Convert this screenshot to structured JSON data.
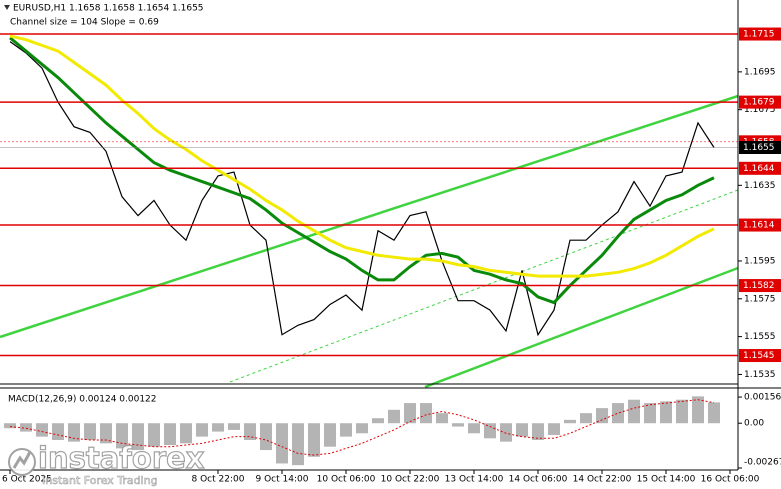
{
  "chart_data": [
    {
      "type": "line",
      "title": "EURUSD,H1  1.1658 1.1658 1.1654 1.1655",
      "subtitle": "Channel size = 104 Slope = 0.69",
      "categories": [
        "6 Oct 2025",
        null,
        null,
        null,
        null,
        null,
        null,
        null,
        null,
        null,
        null,
        null,
        null,
        "8 Oct 22:00",
        null,
        null,
        null,
        "9 Oct 14:00",
        null,
        null,
        null,
        "10 Oct 06:00",
        null,
        null,
        null,
        "10 Oct 22:00",
        null,
        null,
        null,
        "13 Oct 14:00",
        null,
        null,
        null,
        "14 Oct 06:00",
        null,
        null,
        null,
        "14 Oct 22:00",
        null,
        null,
        null,
        "15 Oct 14:00",
        null,
        null,
        null,
        "16 Oct 06:00"
      ],
      "series": [
        {
          "color": "#000000",
          "values": [
            1.1711,
            1.1705,
            1.1697,
            1.1679,
            1.1666,
            1.1663,
            1.1653,
            1.1629,
            1.1619,
            1.1627,
            1.1614,
            1.1606,
            1.1627,
            1.164,
            1.1642,
            1.1614,
            1.1606,
            1.1556,
            1.1561,
            1.1564,
            1.1572,
            1.1577,
            1.1569,
            1.1611,
            1.1606,
            1.1619,
            1.1621,
            1.1595,
            1.1574,
            1.1574,
            1.1569,
            1.1558,
            1.159,
            1.1556,
            1.1569,
            1.1606,
            1.1606,
            1.1614,
            1.1621,
            1.1637,
            1.1624,
            1.164,
            1.1642,
            1.1668,
            1.1655,
            null
          ]
        },
        {
          "color": "#0a8a0a",
          "values": [
            1.1713,
            1.1706,
            1.1699,
            1.1692,
            1.1684,
            1.1676,
            1.1668,
            1.1661,
            1.1654,
            1.1647,
            1.1643,
            1.164,
            1.1637,
            1.1634,
            1.1631,
            1.1628,
            1.1622,
            1.1615,
            1.161,
            1.1605,
            1.16,
            1.1596,
            1.159,
            1.1585,
            1.1585,
            1.1592,
            1.1598,
            1.1599,
            1.1597,
            1.159,
            1.1588,
            1.1585,
            1.1583,
            1.1576,
            1.1573,
            1.1582,
            1.159,
            1.1598,
            1.1608,
            1.1617,
            1.1622,
            1.1627,
            1.163,
            1.1635,
            1.1639,
            null
          ]
        },
        {
          "color": "#f2ea00",
          "values": [
            1.1714,
            1.1712,
            1.1709,
            1.1706,
            1.17,
            1.1694,
            1.1688,
            1.168,
            1.1673,
            1.1665,
            1.1659,
            1.1654,
            1.1648,
            1.1643,
            1.1638,
            1.1633,
            1.1627,
            1.1622,
            1.1616,
            1.1611,
            1.1606,
            1.1602,
            1.16,
            1.1598,
            1.1597,
            1.1596,
            1.1596,
            1.1595,
            1.1593,
            1.1592,
            1.159,
            1.1589,
            1.1588,
            1.1587,
            1.1587,
            1.1587,
            1.1587,
            1.1588,
            1.1589,
            1.1591,
            1.1594,
            1.1598,
            1.1603,
            1.1608,
            1.1612,
            null
          ]
        }
      ],
      "ylim": [
        1.1531,
        1.1733
      ],
      "yticks": [
        1.1535,
        1.1555,
        1.1575,
        1.1595,
        1.1635,
        1.1675,
        1.1695
      ],
      "levels": [
        1.1715,
        1.1679,
        1.1644,
        1.1614,
        1.1582,
        1.1545
      ],
      "level_color": "#e00000",
      "bid_price": 1.1658,
      "last_price": 1.1655,
      "watermark": {
        "brand": "instaforex",
        "tagline": "Instant Forex Trading"
      }
    },
    {
      "type": "bar",
      "title": "MACD(12,26,9) 0.00124 0.00122",
      "color": "#b4b4b4",
      "values": [
        -0.0003,
        -0.0005,
        -0.0008,
        -0.001,
        -0.0011,
        -0.001,
        -0.0012,
        -0.0015,
        -0.0016,
        -0.0014,
        -0.0013,
        -0.0012,
        -0.0008,
        -0.0005,
        -0.0004,
        -0.001,
        -0.0016,
        -0.0024,
        -0.0025,
        -0.002,
        -0.0014,
        -0.0008,
        -0.0006,
        0.0003,
        0.0008,
        0.0012,
        0.0012,
        0.0006,
        -0.0002,
        -0.0006,
        -0.0009,
        -0.0011,
        -0.0008,
        -0.001,
        -0.0007,
        0.0002,
        0.0006,
        0.0009,
        0.0012,
        0.0014,
        0.0012,
        0.0013,
        0.0014,
        0.0016,
        0.00124,
        null
      ],
      "signal": {
        "color": "#e00000",
        "values": [
          -0.0002,
          -0.0003,
          -0.0005,
          -0.0007,
          -0.0009,
          -0.001,
          -0.001,
          -0.0012,
          -0.0013,
          -0.0014,
          -0.0014,
          -0.0013,
          -0.0012,
          -0.001,
          -0.0008,
          -0.0008,
          -0.001,
          -0.0014,
          -0.0018,
          -0.0019,
          -0.0018,
          -0.0015,
          -0.0012,
          -0.0008,
          -0.0004,
          0.0001,
          0.0005,
          0.0007,
          0.0005,
          0.0002,
          -0.0002,
          -0.0006,
          -0.0008,
          -0.0009,
          -0.0009,
          -0.0006,
          -0.0002,
          0.0002,
          0.0006,
          0.0009,
          0.0011,
          0.0012,
          0.0013,
          0.0014,
          0.00122,
          null
        ]
      },
      "ylim": [
        -0.00267,
        0.00198
      ],
      "yticks": [
        0.00156,
        {
          "value": 0,
          "label": "0.00"
        },
        -0.00267
      ]
    }
  ]
}
